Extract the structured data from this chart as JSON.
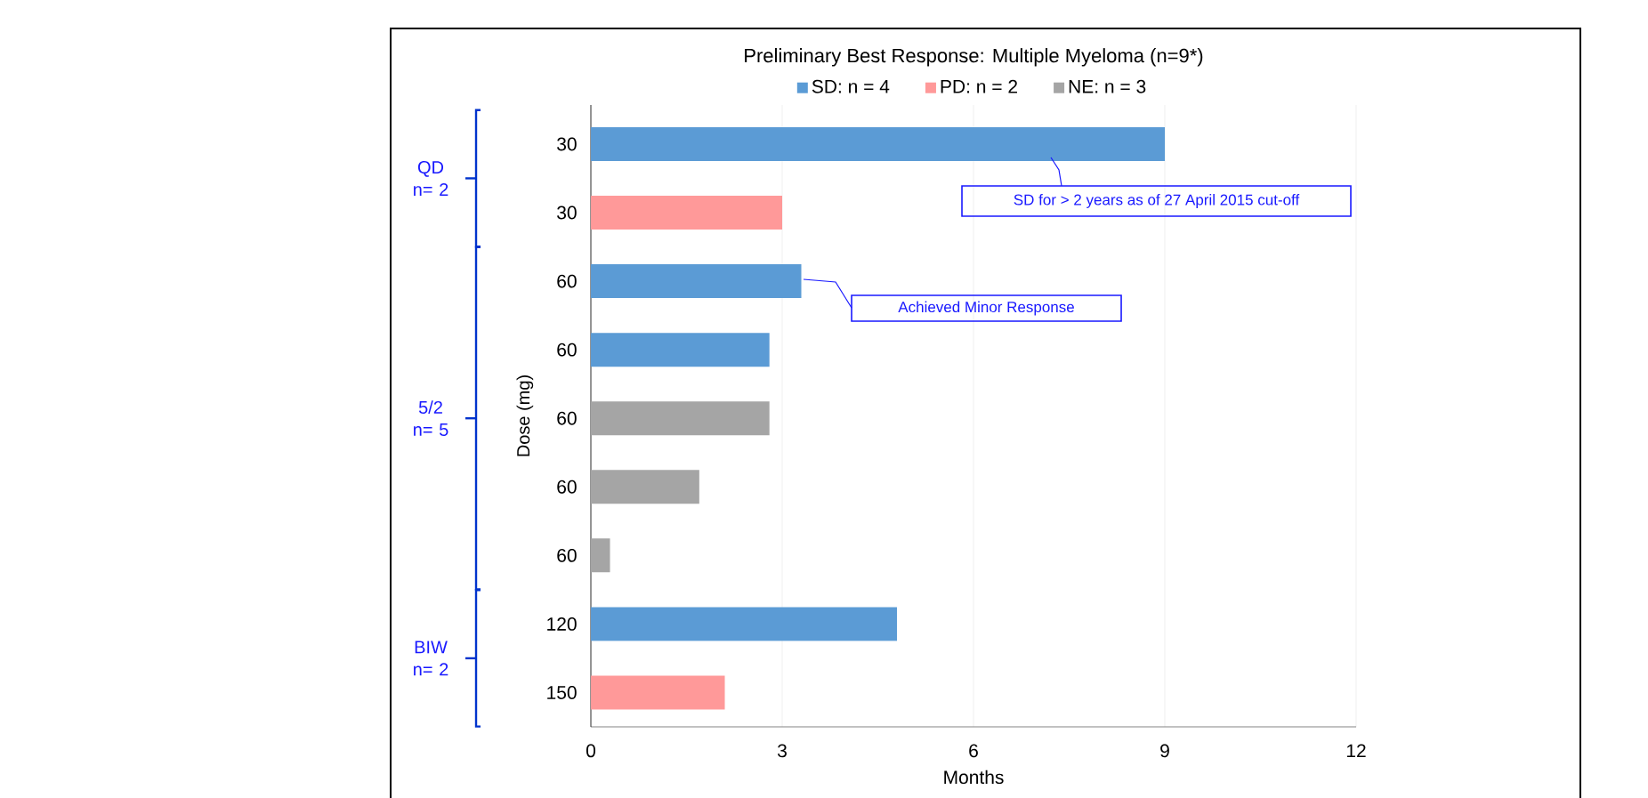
{
  "chart_data": {
    "type": "bar",
    "orientation": "horizontal",
    "title": "Preliminary Best Response: Multiple Myeloma (n=9*)",
    "xlabel": "Months",
    "ylabel": "Dose (mg)",
    "categories": [
      "30",
      "30",
      "60",
      "60",
      "60",
      "60",
      "60",
      "120",
      "150"
    ],
    "series": [
      {
        "name": "SD: n = 4",
        "color": "#5b9bd5",
        "values": [
          9.0,
          null,
          3.3,
          2.8,
          null,
          null,
          null,
          4.8,
          null
        ]
      },
      {
        "name": "PD: n = 2",
        "color": "#ff9999",
        "values": [
          null,
          3.0,
          null,
          null,
          null,
          null,
          null,
          null,
          2.1
        ]
      },
      {
        "name": "NE: n = 3",
        "color": "#a5a5a5",
        "values": [
          null,
          null,
          null,
          null,
          2.8,
          1.7,
          0.3,
          null,
          null
        ]
      }
    ],
    "xlim": [
      0,
      12
    ],
    "xticks": [
      0,
      3,
      6,
      9,
      12
    ],
    "grid": "x",
    "legend": "top",
    "annotations": [
      "QD n= 2",
      "5/2 n= 5",
      "BIW n= 2",
      "SD for > 2 years as of 27 April 2015 cut-off",
      "Achieved Minor Response"
    ]
  }
}
